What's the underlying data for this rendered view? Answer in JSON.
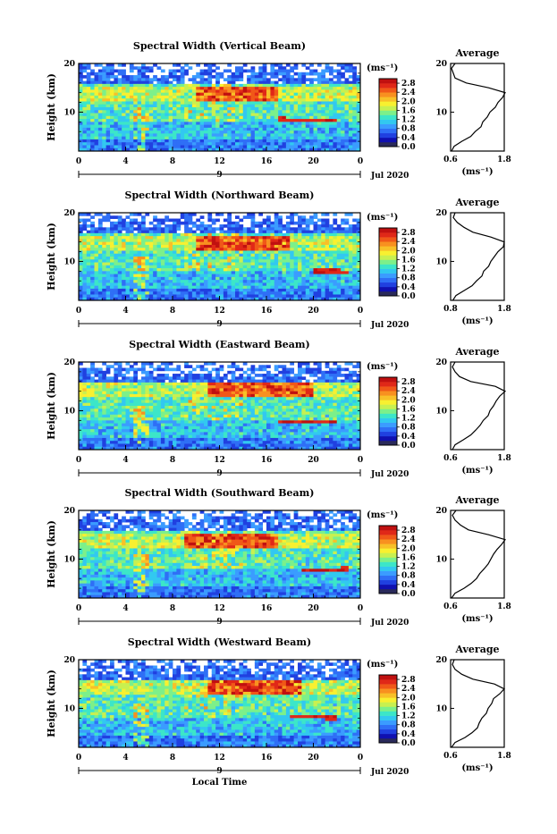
{
  "chart_data": [
    {
      "type": "heatmap",
      "title": "Spectral Width (Vertical Beam)",
      "ylabel": "Height (km)",
      "xlim": [
        0,
        24
      ],
      "ylim": [
        2,
        20
      ],
      "x_ticks": [
        "0",
        "4",
        "8",
        "12",
        "16",
        "20",
        "0"
      ],
      "y_ticks": [
        "20",
        "10"
      ],
      "date_label": "Jul 2020",
      "day_label": "9",
      "colorbar": {
        "unit": "(ms⁻¹)",
        "ticks": [
          "2.8",
          "2.4",
          "2.0",
          "1.6",
          "1.2",
          "0.8",
          "0.4",
          "0.0"
        ],
        "range": [
          0,
          3.0
        ]
      },
      "average_profile": {
        "title": "Average",
        "xlabel": "(ms⁻¹)",
        "x_ticks": [
          "0.6",
          "1.8"
        ],
        "xlim": [
          0.6,
          1.8
        ],
        "y_ticks": [
          "20",
          "10"
        ],
        "height": [
          2,
          3,
          4,
          5,
          6,
          7,
          8,
          9,
          10,
          11,
          12,
          13,
          14,
          15,
          16,
          17,
          18,
          19,
          20
        ],
        "width": [
          0.62,
          0.68,
          0.85,
          1.05,
          1.15,
          1.28,
          1.32,
          1.42,
          1.48,
          1.6,
          1.66,
          1.76,
          1.82,
          1.45,
          0.95,
          0.7,
          0.66,
          0.62,
          0.7
        ]
      },
      "features": {
        "strong_band_km": [
          12,
          15
        ],
        "peak_hours": [
          10,
          17
        ],
        "shear_line": {
          "x": [
            17,
            22
          ],
          "y": [
            8.5,
            8.2
          ]
        }
      }
    },
    {
      "type": "heatmap",
      "title": "Spectral Width (Northward Beam)",
      "ylabel": "Height (km)",
      "xlim": [
        0,
        24
      ],
      "ylim": [
        2,
        20
      ],
      "x_ticks": [
        "0",
        "4",
        "8",
        "12",
        "16",
        "20",
        "0"
      ],
      "y_ticks": [
        "20",
        "10"
      ],
      "date_label": "Jul 2020",
      "day_label": "9",
      "colorbar": {
        "unit": "(ms⁻¹)",
        "ticks": [
          "2.8",
          "2.4",
          "2.0",
          "1.6",
          "1.2",
          "0.8",
          "0.4",
          "0.0"
        ],
        "range": [
          0,
          3.0
        ]
      },
      "average_profile": {
        "title": "Average",
        "xlabel": "(ms⁻¹)",
        "x_ticks": [
          "0.8",
          "1.8"
        ],
        "xlim": [
          0.6,
          1.8
        ],
        "y_ticks": [
          "20",
          "10"
        ],
        "height": [
          2,
          3,
          4,
          5,
          6,
          7,
          8,
          9,
          10,
          11,
          12,
          13,
          14,
          15,
          16,
          17,
          18,
          19,
          20
        ],
        "width": [
          0.65,
          0.72,
          0.9,
          1.08,
          1.18,
          1.3,
          1.34,
          1.45,
          1.5,
          1.58,
          1.66,
          1.78,
          1.8,
          1.5,
          1.1,
          0.9,
          0.75,
          0.66,
          0.7
        ]
      },
      "features": {
        "strong_band_km": [
          12,
          15
        ],
        "peak_hours": [
          10,
          18
        ],
        "shear_line": {
          "x": [
            20,
            23
          ],
          "y": [
            8.0,
            7.8
          ]
        }
      }
    },
    {
      "type": "heatmap",
      "title": "Spectral Width (Eastward Beam)",
      "ylabel": "Height (km)",
      "xlim": [
        0,
        24
      ],
      "ylim": [
        2,
        20
      ],
      "x_ticks": [
        "0",
        "4",
        "8",
        "12",
        "16",
        "20",
        "0"
      ],
      "y_ticks": [
        "20",
        "10"
      ],
      "date_label": "Jul 2020",
      "day_label": "9",
      "colorbar": {
        "unit": "(ms⁻¹)",
        "ticks": [
          "2.8",
          "2.4",
          "2.0",
          "1.6",
          "1.2",
          "0.8",
          "0.4",
          "0.0"
        ],
        "range": [
          0,
          3.0
        ]
      },
      "average_profile": {
        "title": "Average",
        "xlabel": "(ms⁻¹)",
        "x_ticks": [
          "0.6",
          "1.8"
        ],
        "xlim": [
          0.6,
          1.8
        ],
        "y_ticks": [
          "20",
          "10"
        ],
        "height": [
          2,
          3,
          4,
          5,
          6,
          7,
          8,
          9,
          10,
          11,
          12,
          13,
          14,
          15,
          16,
          17,
          18,
          19,
          20
        ],
        "width": [
          0.64,
          0.7,
          0.88,
          1.05,
          1.16,
          1.26,
          1.33,
          1.44,
          1.48,
          1.56,
          1.62,
          1.7,
          1.82,
          1.6,
          1.05,
          0.8,
          0.7,
          0.64,
          0.7
        ]
      },
      "features": {
        "strong_band_km": [
          13,
          16
        ],
        "peak_hours": [
          11,
          20
        ],
        "shear_line": {
          "x": [
            17,
            22
          ],
          "y": [
            7.8,
            7.6
          ]
        }
      }
    },
    {
      "type": "heatmap",
      "title": "Spectral Width (Southward Beam)",
      "ylabel": "Height (km)",
      "xlim": [
        0,
        24
      ],
      "ylim": [
        2,
        20
      ],
      "x_ticks": [
        "0",
        "4",
        "8",
        "12",
        "16",
        "20",
        "0"
      ],
      "y_ticks": [
        "20",
        "10"
      ],
      "date_label": "Jul 2020",
      "day_label": "9",
      "colorbar": {
        "unit": "(ms⁻¹)",
        "ticks": [
          "2.8",
          "2.4",
          "2.0",
          "1.6",
          "1.2",
          "0.8",
          "0.4",
          "0.0"
        ],
        "range": [
          0,
          3.0
        ]
      },
      "average_profile": {
        "title": "Average",
        "xlabel": "(ms⁻¹)",
        "x_ticks": [
          "0.6",
          "1.8"
        ],
        "xlim": [
          0.6,
          1.8
        ],
        "y_ticks": [
          "20",
          "10"
        ],
        "height": [
          2,
          3,
          4,
          5,
          6,
          7,
          8,
          9,
          10,
          11,
          12,
          13,
          14,
          15,
          16,
          17,
          18,
          19,
          20
        ],
        "width": [
          0.62,
          0.7,
          0.9,
          1.06,
          1.18,
          1.25,
          1.35,
          1.44,
          1.5,
          1.56,
          1.64,
          1.74,
          1.82,
          1.45,
          1.0,
          0.82,
          0.7,
          0.64,
          0.72
        ]
      },
      "features": {
        "strong_band_km": [
          12,
          15
        ],
        "peak_hours": [
          9,
          17
        ],
        "shear_line": {
          "x": [
            19,
            23
          ],
          "y": [
            7.6,
            7.9
          ]
        }
      }
    },
    {
      "type": "heatmap",
      "title": "Spectral Width (Westward Beam)",
      "ylabel": "Height (km)",
      "xlim": [
        0,
        24
      ],
      "ylim": [
        2,
        20
      ],
      "x_ticks": [
        "0",
        "4",
        "8",
        "12",
        "16",
        "20",
        "0"
      ],
      "y_ticks": [
        "20",
        "10"
      ],
      "date_label": "Jul 2020",
      "day_label": "9",
      "xlabel": "Local Time",
      "colorbar": {
        "unit": "(ms⁻¹)",
        "ticks": [
          "2.8",
          "2.4",
          "2.0",
          "1.6",
          "1.2",
          "0.8",
          "0.4",
          "0.0"
        ],
        "range": [
          0,
          3.0
        ]
      },
      "average_profile": {
        "title": "Average",
        "xlabel": "(ms⁻¹)",
        "x_ticks": [
          "0.6",
          "1.8"
        ],
        "xlim": [
          0.6,
          1.8
        ],
        "y_ticks": [
          "20",
          "10"
        ],
        "height": [
          2,
          3,
          4,
          5,
          6,
          7,
          8,
          9,
          10,
          11,
          12,
          13,
          14,
          15,
          16,
          17,
          18,
          19,
          20
        ],
        "width": [
          0.62,
          0.7,
          0.92,
          1.08,
          1.2,
          1.24,
          1.3,
          1.4,
          1.44,
          1.52,
          1.56,
          1.7,
          1.8,
          1.58,
          1.1,
          0.85,
          0.7,
          0.64,
          0.68
        ]
      },
      "features": {
        "strong_band_km": [
          13,
          16
        ],
        "peak_hours": [
          11,
          19
        ],
        "shear_line": {
          "x": [
            18,
            22
          ],
          "y": [
            8.3,
            8.1
          ]
        }
      }
    }
  ],
  "colors": {
    "scale": [
      "#2a2a5a",
      "#1010b0",
      "#2040e0",
      "#2f6ff6",
      "#3b9cff",
      "#32c8f0",
      "#3ce6c8",
      "#7cf08a",
      "#c8f050",
      "#f8f030",
      "#f8c028",
      "#f89020",
      "#f05818",
      "#e02818",
      "#c01010"
    ]
  }
}
